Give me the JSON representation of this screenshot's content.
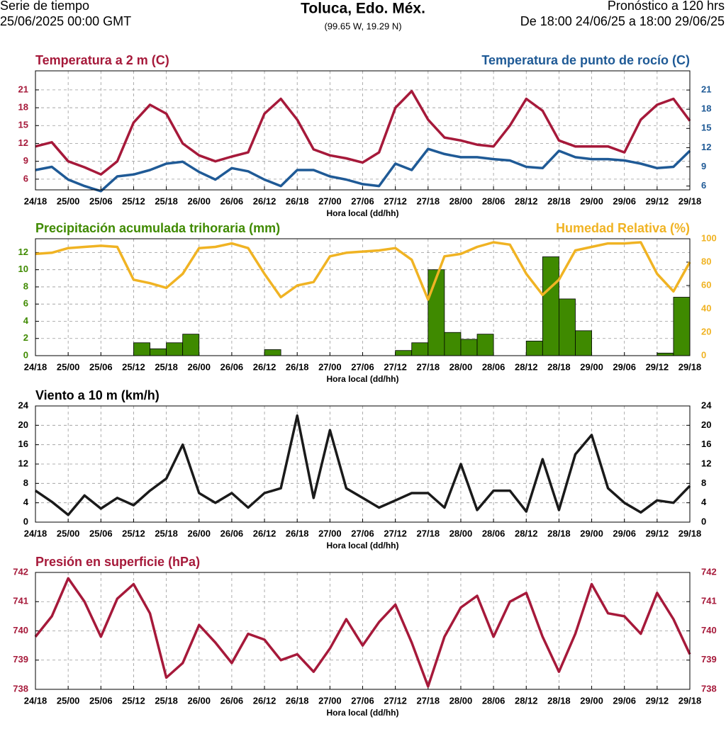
{
  "header": {
    "left_line1": "Serie de tiempo",
    "left_line2": "25/06/2025 00:00 GMT",
    "title": "Toluca, Edo. Méx.",
    "subtitle": "(99.65 W, 19.29 N)",
    "right_line1": "Pronóstico a 120 hrs",
    "right_line2": "De 18:00 24/06/25 a 18:00 29/06/25"
  },
  "chart_data": [
    {
      "type": "line",
      "title": "Temperatura a 2 m (C)",
      "title_color": "#a6193a",
      "y2_title": "Temperatura de punto de rocío (C)",
      "y2_title_color": "#1f5a96",
      "xlabel": "Hora local (dd/hh)",
      "grid": true,
      "x": [
        0,
        3,
        6,
        9,
        12,
        15,
        18,
        21,
        24,
        27,
        30,
        33,
        36,
        39,
        42,
        45,
        48,
        51,
        54,
        57,
        60,
        63,
        66,
        69,
        72,
        75,
        78,
        81,
        84,
        87,
        90,
        93,
        96,
        99,
        102,
        105,
        108,
        111,
        114,
        117,
        120
      ],
      "xlim": [
        0,
        120
      ],
      "xticks": [
        {
          "value": 0,
          "label": "24/18"
        },
        {
          "value": 6,
          "label": "25/00"
        },
        {
          "value": 12,
          "label": "25/06"
        },
        {
          "value": 18,
          "label": "25/12"
        },
        {
          "value": 24,
          "label": "25/18"
        },
        {
          "value": 30,
          "label": "26/00"
        },
        {
          "value": 36,
          "label": "26/06"
        },
        {
          "value": 42,
          "label": "26/12"
        },
        {
          "value": 48,
          "label": "26/18"
        },
        {
          "value": 54,
          "label": "27/00"
        },
        {
          "value": 60,
          "label": "27/06"
        },
        {
          "value": 66,
          "label": "27/12"
        },
        {
          "value": 72,
          "label": "27/18"
        },
        {
          "value": 78,
          "label": "28/00"
        },
        {
          "value": 84,
          "label": "28/06"
        },
        {
          "value": 90,
          "label": "28/12"
        },
        {
          "value": 96,
          "label": "28/18"
        },
        {
          "value": 102,
          "label": "29/00"
        },
        {
          "value": 108,
          "label": "29/06"
        },
        {
          "value": 114,
          "label": "29/12"
        },
        {
          "value": 120,
          "label": "29/18"
        }
      ],
      "ylim": [
        4.2,
        24.2
      ],
      "yticks": [
        6,
        9,
        12,
        15,
        18,
        21
      ],
      "y_color": "#a6193a",
      "y2lim": [
        5.4,
        24
      ],
      "y2ticks": [
        6,
        9,
        12,
        15,
        18,
        21
      ],
      "y2_color": "#1f5a96",
      "series": [
        {
          "name": "Temperatura a 2 m",
          "color": "#a6193a",
          "values": [
            11.5,
            12.2,
            9,
            8,
            6.8,
            9,
            15.5,
            18.5,
            17,
            12,
            10,
            9,
            9.8,
            10.5,
            17,
            19.5,
            16,
            11,
            10,
            9.5,
            8.8,
            10.5,
            18,
            20.8,
            16,
            13,
            12.5,
            11.8,
            11.5,
            15,
            19.5,
            17.5,
            12.5,
            11.5,
            11.5,
            11.5,
            10.5,
            16,
            18.5,
            19.5,
            15.8
          ]
        },
        {
          "name": "Temperatura de punto de rocío",
          "color": "#1f5a96",
          "axis": "y2",
          "values": [
            8.5,
            9,
            7,
            6,
            5.2,
            7.5,
            7.8,
            8.5,
            9.5,
            9.8,
            8.2,
            7,
            8.8,
            8.3,
            7,
            6,
            8.5,
            8.5,
            7.5,
            7,
            6.3,
            6,
            9.5,
            8.5,
            11.8,
            11,
            10.5,
            10.5,
            10.2,
            10,
            9,
            8.8,
            11.5,
            10.5,
            10.2,
            10.2,
            10,
            9.5,
            8.8,
            9,
            11.5
          ]
        }
      ]
    },
    {
      "type": "histogram",
      "title": "Precipitación acumulada trihoraria (mm)",
      "title_color": "#3f8a00",
      "y2_title": "Humedad Relativa (%)",
      "y2_title_color": "#f0b323",
      "xlabel": "Hora local (dd/hh)",
      "grid": true,
      "x": [
        0,
        3,
        6,
        9,
        12,
        15,
        18,
        21,
        24,
        27,
        30,
        33,
        36,
        39,
        42,
        45,
        48,
        51,
        54,
        57,
        60,
        63,
        66,
        69,
        72,
        75,
        78,
        81,
        84,
        87,
        90,
        93,
        96,
        99,
        102,
        105,
        108,
        111,
        114,
        117,
        120
      ],
      "xlim": [
        0,
        120
      ],
      "xticks": [
        {
          "value": 0,
          "label": "24/18"
        },
        {
          "value": 6,
          "label": "25/00"
        },
        {
          "value": 12,
          "label": "25/06"
        },
        {
          "value": 18,
          "label": "25/12"
        },
        {
          "value": 24,
          "label": "25/18"
        },
        {
          "value": 30,
          "label": "26/00"
        },
        {
          "value": 36,
          "label": "26/06"
        },
        {
          "value": 42,
          "label": "26/12"
        },
        {
          "value": 48,
          "label": "26/18"
        },
        {
          "value": 54,
          "label": "27/00"
        },
        {
          "value": 60,
          "label": "27/06"
        },
        {
          "value": 66,
          "label": "27/12"
        },
        {
          "value": 72,
          "label": "27/18"
        },
        {
          "value": 78,
          "label": "28/00"
        },
        {
          "value": 84,
          "label": "28/06"
        },
        {
          "value": 90,
          "label": "28/12"
        },
        {
          "value": 96,
          "label": "28/18"
        },
        {
          "value": 102,
          "label": "29/00"
        },
        {
          "value": 108,
          "label": "29/06"
        },
        {
          "value": 114,
          "label": "29/12"
        },
        {
          "value": 120,
          "label": "29/18"
        }
      ],
      "ylim": [
        0,
        13.6
      ],
      "yticks": [
        0,
        2,
        4,
        6,
        8,
        10,
        12
      ],
      "y_color": "#3f8a00",
      "y2lim": [
        0,
        100
      ],
      "y2ticks": [
        0,
        20,
        40,
        60,
        80,
        100
      ],
      "y2_color": "#f0b323",
      "bins": [
        0,
        3,
        6,
        9,
        12,
        15,
        18,
        21,
        24,
        27,
        30,
        33,
        36,
        39,
        42,
        45,
        48,
        51,
        54,
        57,
        60,
        63,
        66,
        69,
        72,
        75,
        78,
        81,
        84,
        87,
        90,
        93,
        96,
        99,
        102,
        105,
        108,
        111,
        114,
        117,
        120
      ],
      "series": [
        {
          "name": "Precipitación acumulada trihoraria",
          "color": "#3f8a00",
          "values": [
            0,
            0,
            0,
            0,
            0,
            0,
            1.5,
            0.8,
            1.5,
            2.5,
            0,
            0,
            0,
            0,
            0.7,
            0,
            0,
            0,
            0,
            0,
            0,
            0,
            0.6,
            1.5,
            10,
            2.7,
            1.9,
            2.5,
            0,
            0,
            1.7,
            11.5,
            6.6,
            2.9,
            0,
            0,
            0,
            0,
            0.3,
            6.8
          ]
        },
        {
          "name": "Humedad Relativa",
          "color": "#f0b323",
          "axis": "y2",
          "values": [
            87,
            88,
            92,
            93,
            94,
            93,
            65,
            62,
            58,
            70,
            92,
            93,
            96,
            92,
            70,
            50,
            60,
            63,
            85,
            88,
            89,
            90,
            92,
            82,
            48,
            85,
            87,
            93,
            97,
            95,
            70,
            52,
            65,
            90,
            93,
            96,
            96,
            97,
            70,
            55,
            80
          ]
        }
      ]
    },
    {
      "type": "line",
      "title": "Viento a 10 m (km/h)",
      "title_color": "#000000",
      "xlabel": "Hora local (dd/hh)",
      "grid": true,
      "x": [
        0,
        3,
        6,
        9,
        12,
        15,
        18,
        21,
        24,
        27,
        30,
        33,
        36,
        39,
        42,
        45,
        48,
        51,
        54,
        57,
        60,
        63,
        66,
        69,
        72,
        75,
        78,
        81,
        84,
        87,
        90,
        93,
        96,
        99,
        102,
        105,
        108,
        111,
        114,
        117,
        120
      ],
      "xlim": [
        0,
        120
      ],
      "xticks": [
        {
          "value": 0,
          "label": "24/18"
        },
        {
          "value": 6,
          "label": "25/00"
        },
        {
          "value": 12,
          "label": "25/06"
        },
        {
          "value": 18,
          "label": "25/12"
        },
        {
          "value": 24,
          "label": "25/18"
        },
        {
          "value": 30,
          "label": "26/00"
        },
        {
          "value": 36,
          "label": "26/06"
        },
        {
          "value": 42,
          "label": "26/12"
        },
        {
          "value": 48,
          "label": "26/18"
        },
        {
          "value": 54,
          "label": "27/00"
        },
        {
          "value": 60,
          "label": "27/06"
        },
        {
          "value": 66,
          "label": "27/12"
        },
        {
          "value": 72,
          "label": "27/18"
        },
        {
          "value": 78,
          "label": "28/00"
        },
        {
          "value": 84,
          "label": "28/06"
        },
        {
          "value": 90,
          "label": "28/12"
        },
        {
          "value": 96,
          "label": "28/18"
        },
        {
          "value": 102,
          "label": "29/00"
        },
        {
          "value": 108,
          "label": "29/06"
        },
        {
          "value": 114,
          "label": "29/12"
        },
        {
          "value": 120,
          "label": "29/18"
        }
      ],
      "ylim": [
        0,
        24
      ],
      "yticks": [
        0,
        4,
        8,
        12,
        16,
        20,
        24
      ],
      "y_color": "#000000",
      "y2lim": [
        0,
        24
      ],
      "y2ticks": [
        0,
        4,
        8,
        12,
        16,
        20,
        24
      ],
      "y2_color": "#000000",
      "series": [
        {
          "name": "Viento a 10 m",
          "color": "#1a1a1a",
          "values": [
            6.5,
            4.2,
            1.5,
            5.5,
            2.8,
            5,
            3.5,
            6.5,
            9,
            16,
            6,
            4,
            6,
            3,
            6,
            7,
            22,
            5,
            19,
            7,
            5,
            3,
            4.5,
            6,
            6,
            3,
            12,
            2.5,
            6.5,
            6.5,
            2.2,
            13,
            2.5,
            14,
            18,
            7,
            4,
            2,
            4.5,
            4,
            7.5
          ]
        }
      ]
    },
    {
      "type": "line",
      "title": "Presión en superficie (hPa)",
      "title_color": "#a6193a",
      "xlabel": "Hora local (dd/hh)",
      "grid": true,
      "x": [
        0,
        3,
        6,
        9,
        12,
        15,
        18,
        21,
        24,
        27,
        30,
        33,
        36,
        39,
        42,
        45,
        48,
        51,
        54,
        57,
        60,
        63,
        66,
        69,
        72,
        75,
        78,
        81,
        84,
        87,
        90,
        93,
        96,
        99,
        102,
        105,
        108,
        111,
        114,
        117,
        120
      ],
      "xlim": [
        0,
        120
      ],
      "xticks": [
        {
          "value": 0,
          "label": "24/18"
        },
        {
          "value": 6,
          "label": "25/00"
        },
        {
          "value": 12,
          "label": "25/06"
        },
        {
          "value": 18,
          "label": "25/12"
        },
        {
          "value": 24,
          "label": "25/18"
        },
        {
          "value": 30,
          "label": "26/00"
        },
        {
          "value": 36,
          "label": "26/06"
        },
        {
          "value": 42,
          "label": "26/12"
        },
        {
          "value": 48,
          "label": "26/18"
        },
        {
          "value": 54,
          "label": "27/00"
        },
        {
          "value": 60,
          "label": "27/06"
        },
        {
          "value": 66,
          "label": "27/12"
        },
        {
          "value": 72,
          "label": "27/18"
        },
        {
          "value": 78,
          "label": "28/00"
        },
        {
          "value": 84,
          "label": "28/06"
        },
        {
          "value": 90,
          "label": "28/12"
        },
        {
          "value": 96,
          "label": "28/18"
        },
        {
          "value": 102,
          "label": "29/00"
        },
        {
          "value": 108,
          "label": "29/06"
        },
        {
          "value": 114,
          "label": "29/12"
        },
        {
          "value": 120,
          "label": "29/18"
        }
      ],
      "ylim": [
        738,
        742
      ],
      "yticks": [
        738,
        739,
        740,
        741,
        742
      ],
      "y_color": "#a6193a",
      "y2lim": [
        738,
        742
      ],
      "y2ticks": [
        738,
        739,
        740,
        741,
        742
      ],
      "y2_color": "#a6193a",
      "series": [
        {
          "name": "Presión en superficie",
          "color": "#a6193a",
          "values": [
            739.8,
            740.5,
            741.8,
            741,
            739.8,
            741.1,
            741.6,
            740.6,
            738.4,
            738.9,
            740.2,
            739.6,
            738.9,
            739.9,
            739.7,
            739,
            739.2,
            738.6,
            739.4,
            740.4,
            739.5,
            740.3,
            740.9,
            739.6,
            738.1,
            739.8,
            740.8,
            741.2,
            739.8,
            741,
            741.3,
            739.8,
            738.6,
            739.9,
            741.6,
            740.6,
            740.5,
            739.9,
            741.3,
            740.4,
            739.2
          ]
        }
      ]
    }
  ]
}
